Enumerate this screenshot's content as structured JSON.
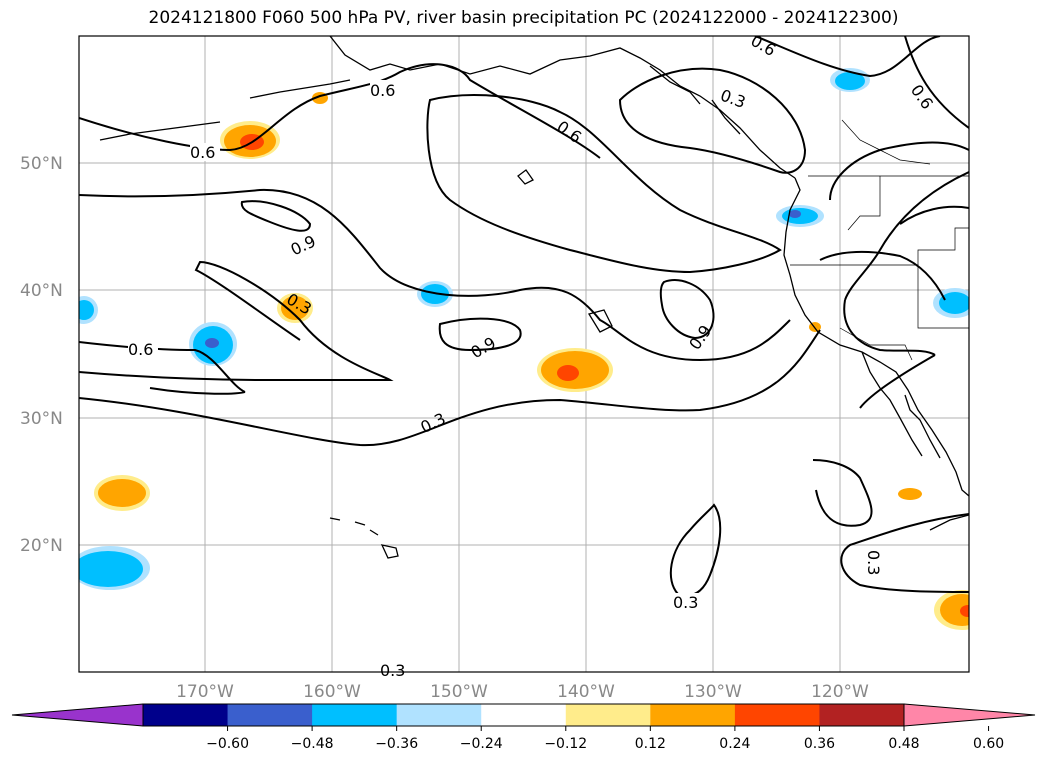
{
  "title": "2024121800 F060 500 hPa PV, river basin precipitation PC (2024122000 - 2024122300)",
  "map": {
    "lat_labels": [
      "50°N",
      "40°N",
      "30°N",
      "20°N"
    ],
    "lon_labels": [
      "170°W",
      "160°W",
      "150°W",
      "140°W",
      "130°W",
      "120°W"
    ],
    "contour_labels": [
      "0.6",
      "0.6",
      "0.6",
      "0.3",
      "0.6",
      "0.6",
      "0.9",
      "0.3",
      "0.6",
      "0.9",
      "0.9",
      "0.3",
      "0.3",
      "0.3",
      "0.3"
    ]
  },
  "colorbar": {
    "ticks": [
      "−0.60",
      "−0.48",
      "−0.36",
      "−0.24",
      "−0.12",
      "0.12",
      "0.24",
      "0.36",
      "0.48",
      "0.60"
    ],
    "colors": [
      "#9933cc",
      "#00008b",
      "#3a5fcd",
      "#00bfff",
      "#b0e2ff",
      "#ffffff",
      "#ffec8b",
      "#ffa500",
      "#ff4500",
      "#b22222",
      "#ff86a8"
    ]
  }
}
